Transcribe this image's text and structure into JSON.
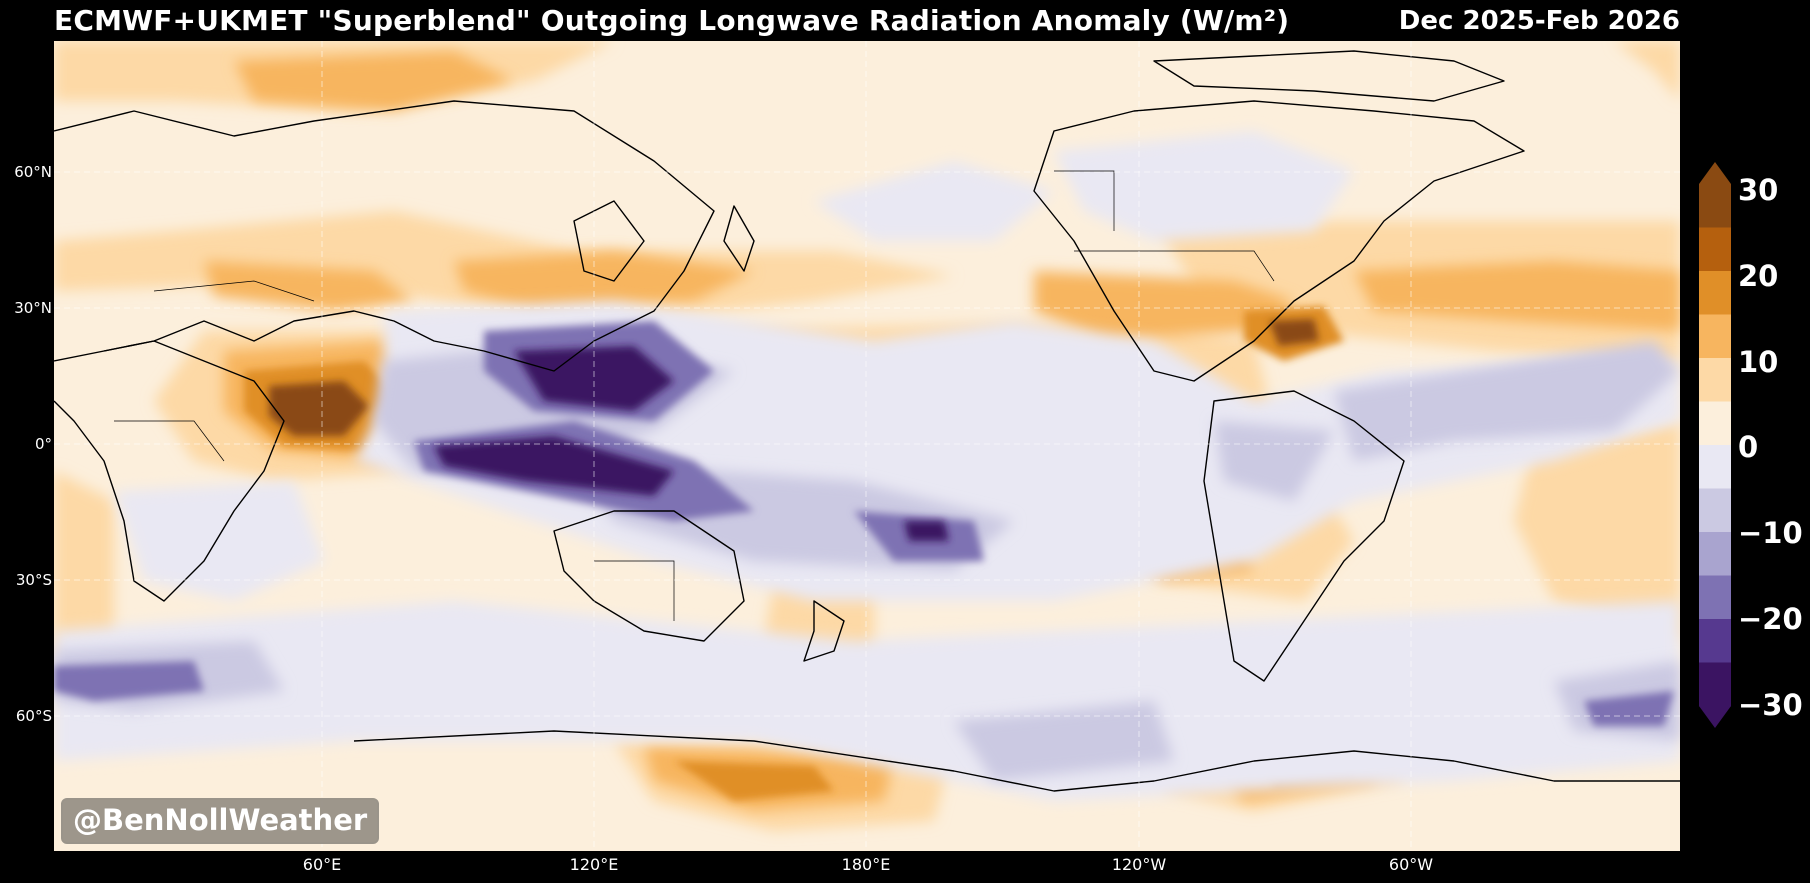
{
  "header": {
    "title": "ECMWF+UKMET \"Superblend\" Outgoing Longwave Radiation Anomaly (W/m²)",
    "period": "Dec 2025-Feb 2026"
  },
  "axes": {
    "lat_labels": [
      "60°N",
      "30°N",
      "0°",
      "30°S",
      "60°S"
    ],
    "lon_labels": [
      "60°E",
      "120°E",
      "180°E",
      "120°W",
      "60°W"
    ]
  },
  "colorbar": {
    "labels": [
      "30",
      "20",
      "10",
      "0",
      "−10",
      "−20",
      "−30"
    ],
    "colors": [
      "#8a4a12",
      "#b5600e",
      "#e08f28",
      "#f7b55f",
      "#fdd9a6",
      "#fcefdc",
      "#e9e8f3",
      "#cbc9e2",
      "#a9a4cf",
      "#7e72b3",
      "#56398f",
      "#3b1462"
    ],
    "extend_high": "#8a4a12",
    "extend_low": "#3b1462"
  },
  "legend_palette": {
    "ocean_base": "#fcefdc",
    "coast": "#000000"
  },
  "credit": "@BenNollWeather"
}
